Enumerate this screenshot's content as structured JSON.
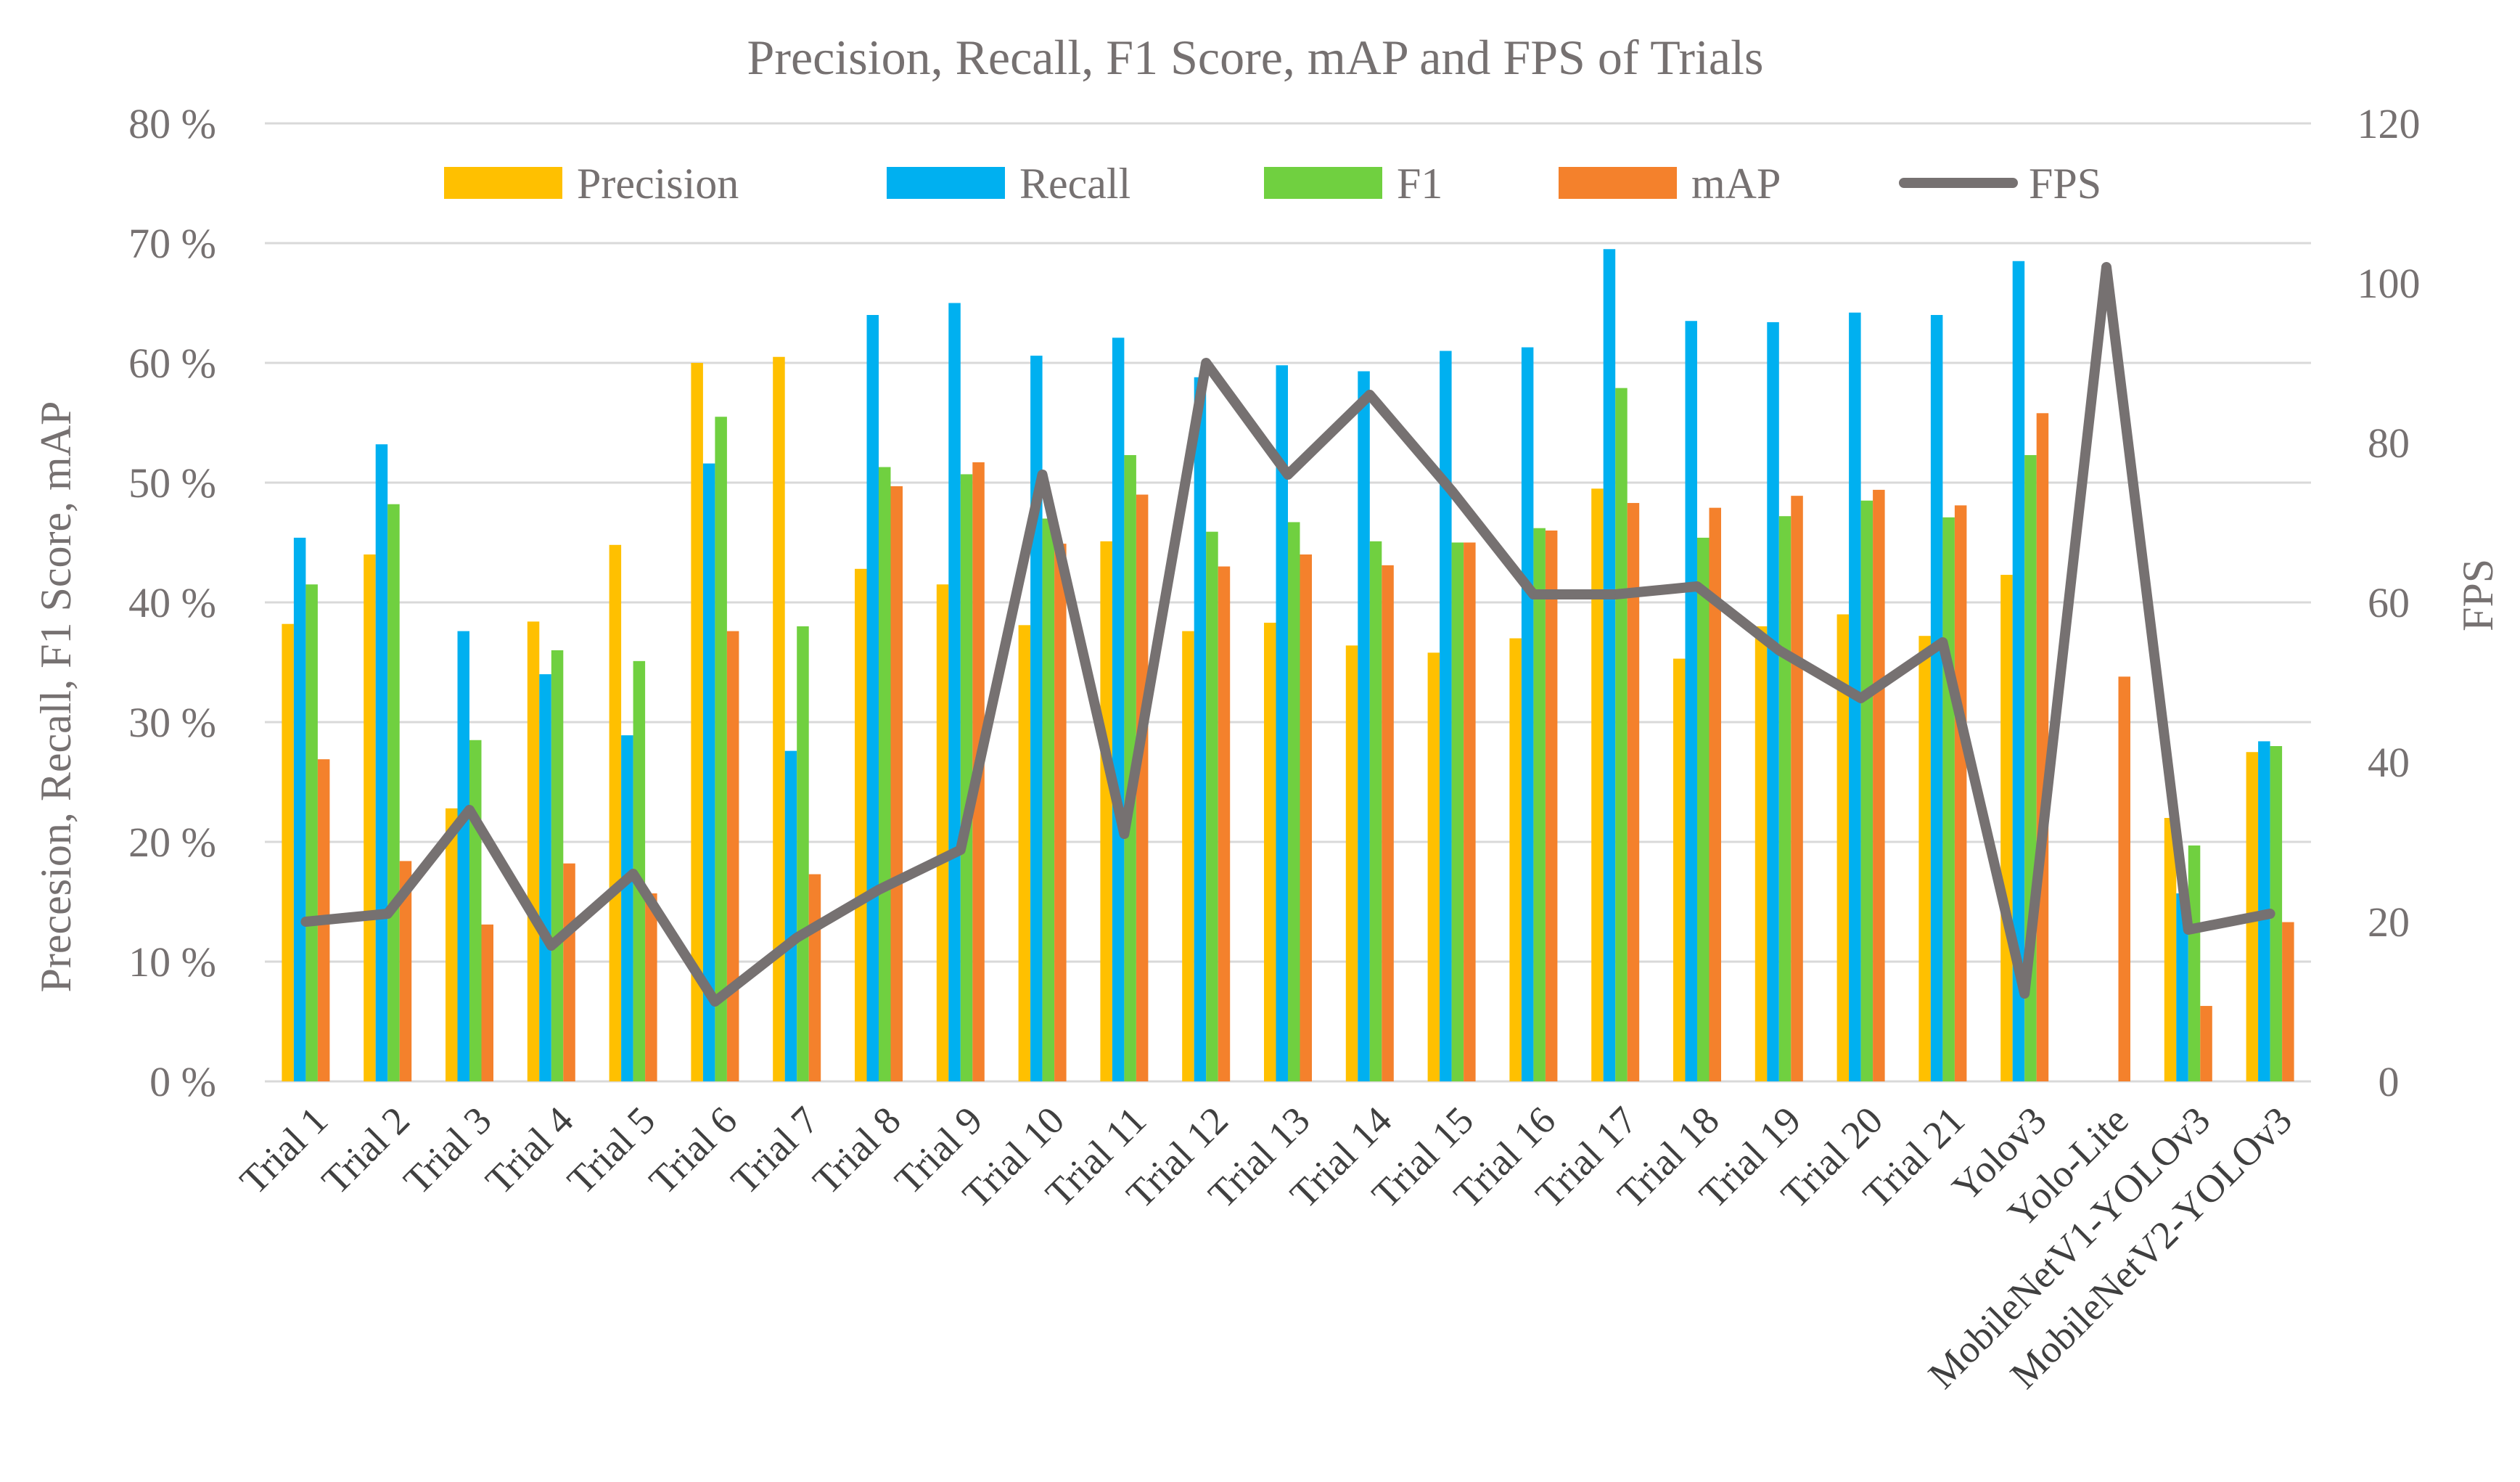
{
  "chart_data": {
    "type": "bar+line",
    "title": "Precision, Recall, F1 Score, mAP and FPS of Trials",
    "ylabel_left": "Precesion, Recall, F1 Score, mAP",
    "ylabel_right": "FPS",
    "xlabel": "",
    "ylim_left": [
      0,
      80
    ],
    "ylim_right": [
      0,
      120
    ],
    "left_ticks": [
      "0 %",
      "10 %",
      "20 %",
      "30 %",
      "40 %",
      "50 %",
      "60 %",
      "70 %",
      "80 %"
    ],
    "right_ticks": [
      "0",
      "20",
      "40",
      "60",
      "80",
      "100",
      "120"
    ],
    "categories": [
      "Trial 1",
      "Trial 2",
      "Trial 3",
      "Trial 4",
      "Trial 5",
      "Trial 6",
      "Trial 7",
      "Trial 8",
      "Trial 9",
      "Trial 10",
      "Trial 11",
      "Trial 12",
      "Trial 13",
      "Trial 14",
      "Trial 15",
      "Trial 16",
      "Trial 17",
      "Trial 18",
      "Trial 19",
      "Trial 20",
      "Trial 21",
      "Yolov3",
      "Yolo-Lite",
      "MobileNetV1-YOLOv3",
      "MobileNetV2-YOLOv3"
    ],
    "legend_position": "top",
    "grid": true,
    "series": [
      {
        "name": "Precision",
        "color": "#FFC000",
        "axis": "left",
        "kind": "bar",
        "values": [
          38.2,
          44.0,
          22.8,
          38.4,
          44.8,
          60.0,
          60.5,
          42.8,
          41.5,
          38.1,
          45.1,
          37.6,
          38.3,
          36.4,
          35.8,
          37.0,
          49.5,
          35.3,
          38.0,
          39.0,
          37.2,
          42.3,
          0,
          22.0,
          27.5
        ]
      },
      {
        "name": "Recall",
        "color": "#00B0F0",
        "axis": "left",
        "kind": "bar",
        "values": [
          45.4,
          53.2,
          37.6,
          34.0,
          28.9,
          51.6,
          27.6,
          64.0,
          65.0,
          60.6,
          62.1,
          58.8,
          59.8,
          59.3,
          61.0,
          61.3,
          69.5,
          63.5,
          63.4,
          64.2,
          64.0,
          68.5,
          0,
          15.7,
          28.4
        ]
      },
      {
        "name": "F1",
        "color": "#70D040",
        "axis": "left",
        "kind": "bar",
        "values": [
          41.5,
          48.2,
          28.5,
          36.0,
          35.1,
          55.5,
          38.0,
          51.3,
          50.7,
          47.0,
          52.3,
          45.9,
          46.7,
          45.1,
          45.0,
          46.2,
          57.9,
          45.4,
          47.2,
          48.5,
          47.1,
          52.3,
          0,
          19.7,
          28.0
        ]
      },
      {
        "name": "mAP",
        "color": "#F4812C",
        "axis": "left",
        "kind": "bar",
        "values": [
          26.9,
          18.4,
          13.1,
          18.2,
          15.7,
          37.6,
          17.3,
          49.7,
          51.7,
          44.9,
          49.0,
          43.0,
          44.0,
          43.1,
          45.0,
          46.0,
          48.3,
          47.9,
          48.9,
          49.4,
          48.1,
          55.8,
          33.8,
          6.3,
          13.3
        ]
      },
      {
        "name": "FPS",
        "color": "#767171",
        "axis": "right",
        "kind": "line",
        "values": [
          20,
          21,
          34,
          17,
          26,
          10,
          18,
          24,
          29,
          76,
          31,
          90,
          76,
          86,
          74,
          61,
          61,
          62,
          54,
          48,
          55,
          11,
          102,
          19,
          21
        ]
      }
    ]
  }
}
